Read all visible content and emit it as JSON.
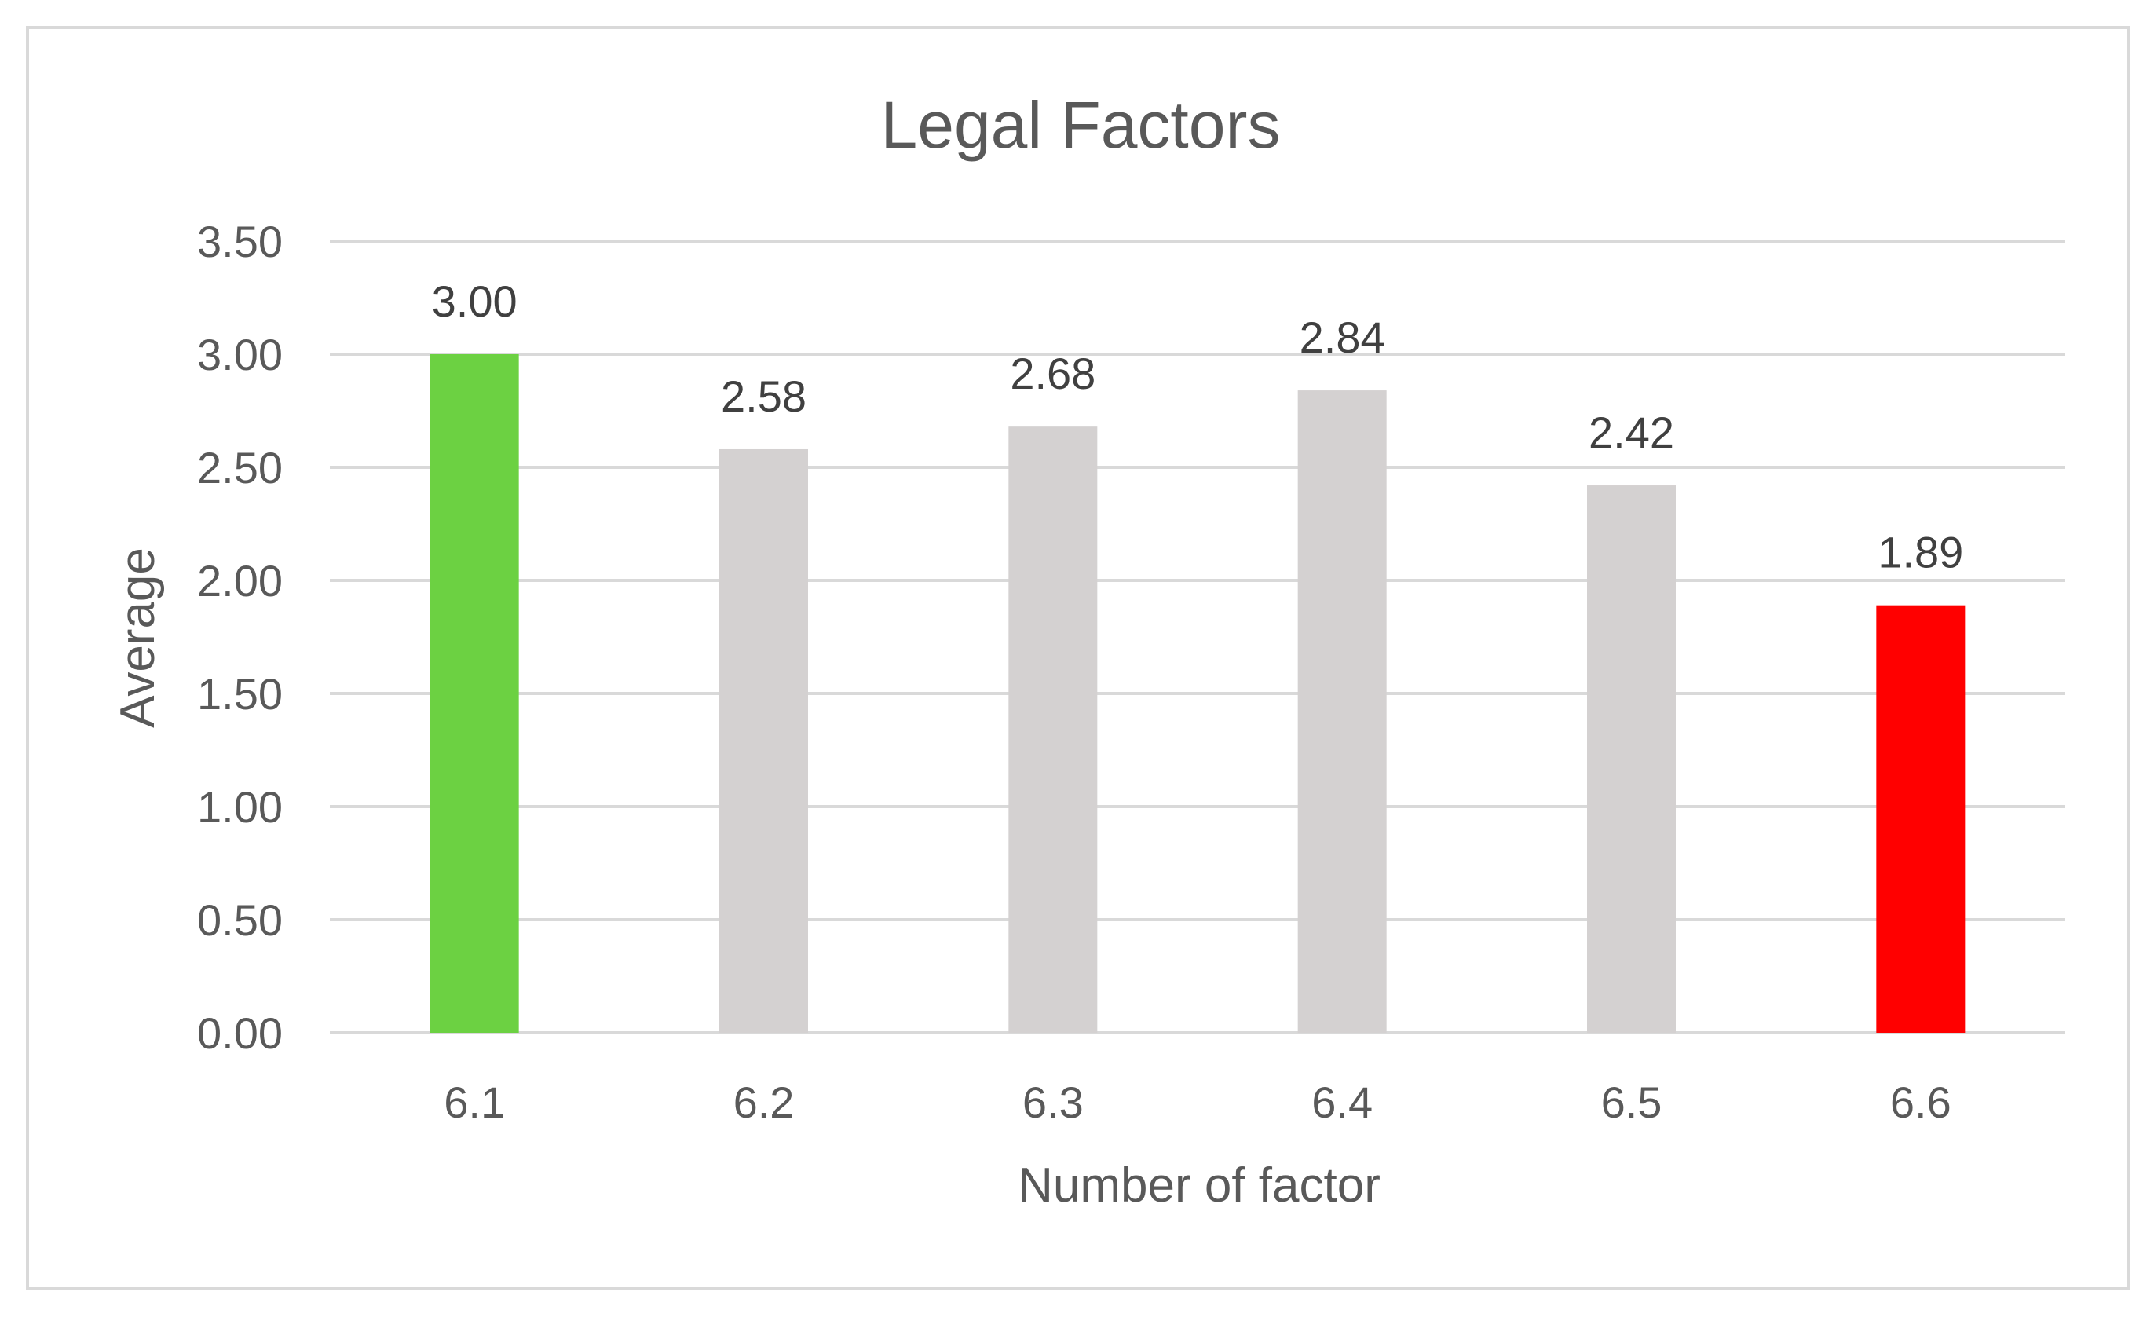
{
  "chart_data": {
    "type": "bar",
    "title": "Legal Factors",
    "xlabel": "Number of factor",
    "ylabel": "Average",
    "categories": [
      "6.1",
      "6.2",
      "6.3",
      "6.4",
      "6.5",
      "6.6"
    ],
    "values": [
      3.0,
      2.58,
      2.68,
      2.84,
      2.42,
      1.89
    ],
    "data_labels": [
      "3.00",
      "2.58",
      "2.68",
      "2.84",
      "2.42",
      "1.89"
    ],
    "ylim": [
      0,
      3.5
    ],
    "yticks": [
      "0.00",
      "0.50",
      "1.00",
      "1.50",
      "2.00",
      "2.50",
      "3.00",
      "3.50"
    ],
    "ytick_values": [
      0,
      0.5,
      1,
      1.5,
      2,
      2.5,
      3,
      3.5
    ],
    "bar_colors": [
      "#6cd142",
      "#d4d1d1",
      "#d4d1d1",
      "#d4d1d1",
      "#d4d1d1",
      "#ff0000"
    ],
    "grid": true,
    "legend": "none"
  }
}
